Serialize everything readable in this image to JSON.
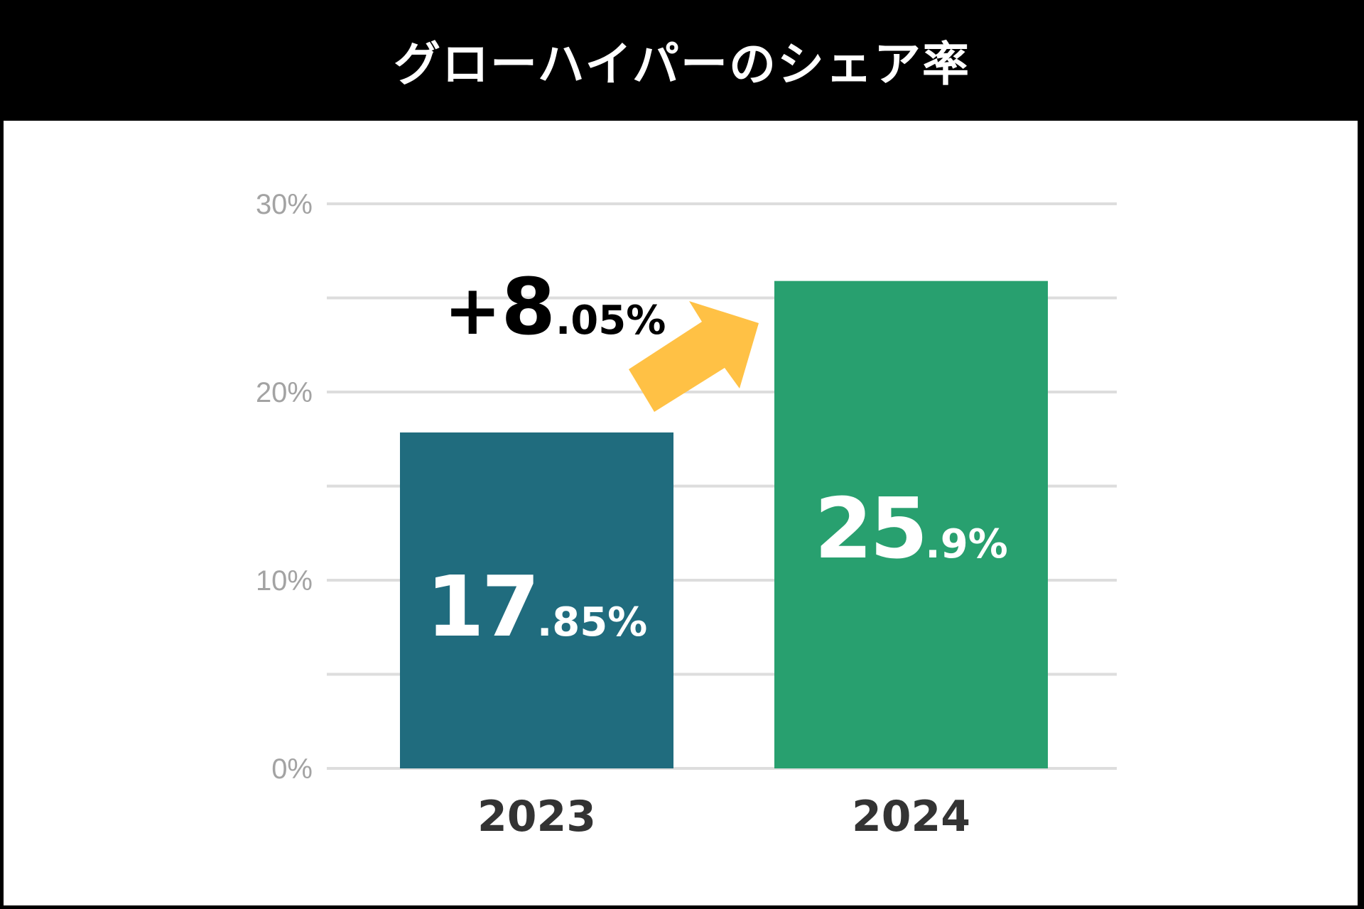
{
  "title": "グローハイパーのシェア率",
  "colors": {
    "header_background": "#000000",
    "panel_background": "#ffffff",
    "bar_2023": "#206c7e",
    "bar_2024": "#28a06f",
    "arrow": "#ffc145",
    "gridline": "#dddddd",
    "tick_label": "#a3a3a3",
    "category_label": "#333333"
  },
  "chart_data": {
    "type": "bar",
    "title": "グローハイパーのシェア率",
    "categories": [
      "2023",
      "2024"
    ],
    "values": [
      17.85,
      25.9
    ],
    "ylim": [
      0,
      30
    ],
    "yticks": [
      0,
      5,
      10,
      15,
      20,
      25,
      30
    ],
    "ytick_labels": [
      {
        "value": 0,
        "label": "0%"
      },
      {
        "value": 10,
        "label": "10%"
      },
      {
        "value": 20,
        "label": "20%"
      },
      {
        "value": 30,
        "label": "30%"
      }
    ],
    "bar_labels": [
      {
        "int": "17",
        "dec": ".85%"
      },
      {
        "int": "25",
        "dec": ".9%"
      }
    ],
    "grid": true,
    "annotation": {
      "sign": "+",
      "int": "8",
      "dec": ".05%",
      "arrow": "up-right"
    }
  }
}
